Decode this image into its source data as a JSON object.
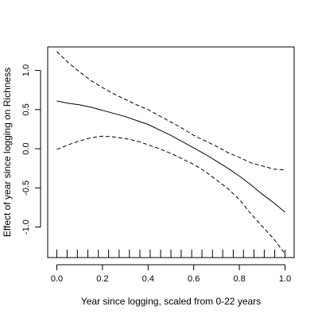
{
  "chart_data": {
    "type": "line",
    "xlabel": "Year since logging, scaled from 0-22 years",
    "ylabel": "Effect of year since logging on Richness",
    "xlim": [
      -0.04,
      1.04
    ],
    "ylim": [
      -1.39,
      1.3
    ],
    "x_ticks": [
      0.0,
      0.2,
      0.4,
      0.6,
      0.8,
      1.0
    ],
    "x_tick_labels": [
      "0.0",
      "0.2",
      "0.4",
      "0.6",
      "0.8",
      "1.0"
    ],
    "y_ticks": [
      -1.0,
      -0.5,
      0.0,
      0.5,
      1.0
    ],
    "y_tick_labels": [
      "-1.0",
      "-0.5",
      "0.0",
      "0.5",
      "1.0"
    ],
    "rug_x": [
      0.0,
      0.045,
      0.09,
      0.136,
      0.182,
      0.227,
      0.273,
      0.318,
      0.364,
      0.409,
      0.455,
      0.5,
      0.545,
      0.591,
      0.636,
      0.682,
      0.727,
      0.773,
      0.818,
      0.864,
      0.909,
      0.955,
      1.0
    ],
    "grid": false,
    "series": [
      {
        "role": "fit",
        "line_style": "solid",
        "x": [
          0.0,
          0.05,
          0.1,
          0.15,
          0.2,
          0.25,
          0.3,
          0.35,
          0.4,
          0.45,
          0.5,
          0.55,
          0.6,
          0.65,
          0.7,
          0.75,
          0.8,
          0.85,
          0.9,
          0.95,
          1.0
        ],
        "y": [
          0.61,
          0.58,
          0.56,
          0.53,
          0.49,
          0.45,
          0.41,
          0.36,
          0.31,
          0.24,
          0.17,
          0.09,
          0.01,
          -0.07,
          -0.16,
          -0.25,
          -0.35,
          -0.46,
          -0.58,
          -0.69,
          -0.81
        ]
      },
      {
        "role": "upper-ci",
        "line_style": "dashed",
        "x": [
          0.0,
          0.05,
          0.1,
          0.15,
          0.2,
          0.25,
          0.3,
          0.35,
          0.4,
          0.45,
          0.5,
          0.55,
          0.6,
          0.65,
          0.7,
          0.75,
          0.8,
          0.85,
          0.9,
          0.95,
          1.0
        ],
        "y": [
          1.24,
          1.1,
          0.98,
          0.87,
          0.78,
          0.7,
          0.63,
          0.56,
          0.5,
          0.42,
          0.34,
          0.26,
          0.17,
          0.1,
          0.03,
          -0.05,
          -0.11,
          -0.18,
          -0.22,
          -0.26,
          -0.27
        ]
      },
      {
        "role": "lower-ci",
        "line_style": "dashed",
        "x": [
          0.0,
          0.05,
          0.1,
          0.15,
          0.2,
          0.25,
          0.3,
          0.35,
          0.4,
          0.45,
          0.5,
          0.55,
          0.6,
          0.65,
          0.7,
          0.75,
          0.8,
          0.85,
          0.9,
          0.95,
          1.0
        ],
        "y": [
          -0.01,
          0.05,
          0.1,
          0.14,
          0.16,
          0.15,
          0.13,
          0.1,
          0.05,
          0.0,
          -0.06,
          -0.13,
          -0.2,
          -0.29,
          -0.4,
          -0.51,
          -0.65,
          -0.83,
          -0.99,
          -1.15,
          -1.34
        ]
      }
    ]
  }
}
